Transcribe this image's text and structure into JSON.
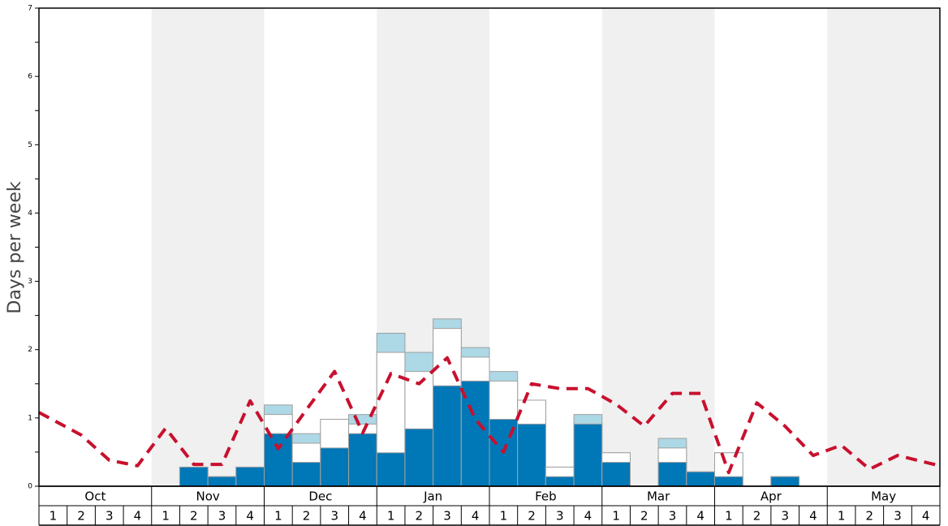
{
  "chart_data": {
    "type": "bar",
    "ylabel": "Days per week",
    "ylim": [
      0,
      7
    ],
    "y_ticks": [
      0,
      1,
      2,
      3,
      4,
      5,
      6,
      7
    ],
    "months": [
      "Oct",
      "Nov",
      "Dec",
      "Jan",
      "Feb",
      "Mar",
      "Apr",
      "May"
    ],
    "week_labels": [
      "1",
      "2",
      "3",
      "4"
    ],
    "shaded_months": [
      "Nov",
      "Jan",
      "Mar",
      "May"
    ],
    "grid": false,
    "colors": {
      "dark": "#0077b6",
      "white": "#ffffff",
      "light": "#add8e6",
      "line": "#c8102e",
      "shade": "#f0f0f0"
    },
    "series": [
      {
        "values": [
          0,
          0,
          0,
          0,
          0,
          0.28,
          0.14,
          0.28,
          0.77,
          0.35,
          0.56,
          0.77,
          0.49,
          0.84,
          1.47,
          1.54,
          0.98,
          0.91,
          0.14,
          0.91,
          0.35,
          0,
          0.35,
          0.21,
          0.14,
          0,
          0.14,
          0,
          0,
          0,
          0,
          0
        ]
      },
      {
        "values": [
          0,
          0,
          0,
          0,
          0,
          0.28,
          0.14,
          0.28,
          1.05,
          0.63,
          0.98,
          0.91,
          1.96,
          1.68,
          2.31,
          1.89,
          1.54,
          1.26,
          0.28,
          0.91,
          0.49,
          0,
          0.56,
          0.21,
          0.49,
          0,
          0.14,
          0,
          0,
          0,
          0,
          0
        ]
      },
      {
        "values": [
          0,
          0,
          0,
          0,
          0,
          0.28,
          0.14,
          0.28,
          1.19,
          0.77,
          0.98,
          1.05,
          2.24,
          1.96,
          2.45,
          2.03,
          1.68,
          1.26,
          0.28,
          1.05,
          0.49,
          0,
          0.7,
          0.21,
          0.49,
          0,
          0.14,
          0,
          0,
          0,
          0,
          0
        ]
      },
      {
        "style": "dashed",
        "values": [
          1.08,
          0.75,
          0.38,
          0.3,
          0.85,
          0.32,
          0.32,
          1.25,
          0.55,
          1.12,
          1.68,
          0.78,
          1.65,
          1.5,
          1.88,
          0.98,
          0.5,
          1.5,
          1.43,
          1.43,
          1.2,
          0.88,
          1.36,
          1.36,
          0.2,
          1.22,
          0.88,
          0.45,
          0.6,
          0.25,
          0.45,
          0.3
        ]
      }
    ]
  }
}
